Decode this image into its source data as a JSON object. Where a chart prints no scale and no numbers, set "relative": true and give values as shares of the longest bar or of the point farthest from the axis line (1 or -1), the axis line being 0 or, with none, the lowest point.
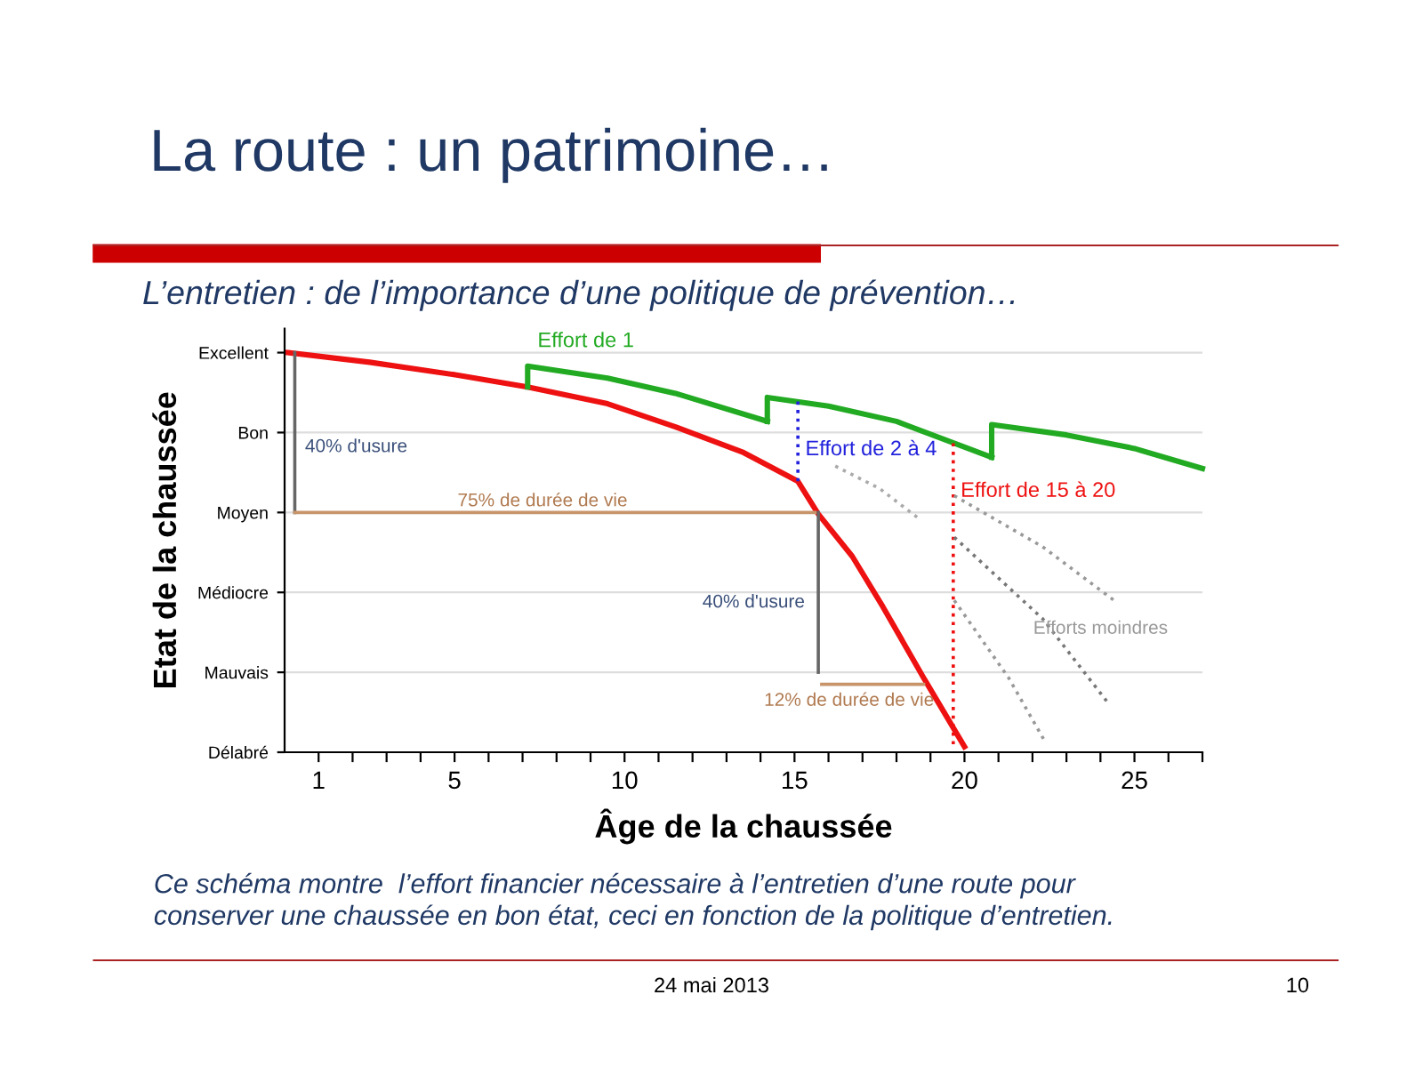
{
  "chart_data": {
    "type": "line",
    "title": "La route : un patrimoine…",
    "subtitle": "L’entretien : de l’importance d’une politique de prévention…",
    "xlabel": "Âge de la chaussée",
    "ylabel": "Etat de la chaussée",
    "relative": true,
    "xlim": [
      0,
      27
    ],
    "xticks": [
      1,
      {
        "value": 2,
        "label": null
      },
      {
        "value": 3,
        "label": null
      },
      {
        "value": 4,
        "label": null
      },
      5,
      {
        "value": 6,
        "label": null
      },
      {
        "value": 7,
        "label": null
      },
      {
        "value": 8,
        "label": null
      },
      {
        "value": 9,
        "label": null
      },
      10,
      {
        "value": 11,
        "label": null
      },
      {
        "value": 12,
        "label": null
      },
      {
        "value": 13,
        "label": null
      },
      {
        "value": 14,
        "label": null
      },
      15,
      {
        "value": 16,
        "label": null
      },
      {
        "value": 17,
        "label": null
      },
      {
        "value": 18,
        "label": null
      },
      {
        "value": 19,
        "label": null
      },
      20,
      {
        "value": 21,
        "label": null
      },
      {
        "value": 22,
        "label": null
      },
      {
        "value": 23,
        "label": null
      },
      {
        "value": 24,
        "label": null
      },
      25,
      {
        "value": 26,
        "label": null
      },
      {
        "value": 27,
        "label": null
      }
    ],
    "y_categories": [
      "Excellent",
      "Bon",
      "Moyen",
      "Médiocre",
      "Mauvais",
      "Délabré"
    ],
    "grid": "y",
    "legend": false,
    "series": [
      {
        "color": "#ee1111",
        "x": [
          0.1,
          2.5,
          5.06,
          7.15,
          9.5,
          11.5,
          13.5,
          15.1,
          15.7,
          16.7,
          17.6,
          18.8,
          20.0
        ],
        "values": [
          1.0,
          0.976,
          0.944,
          0.914,
          0.872,
          0.814,
          0.75,
          0.678,
          0.596,
          0.49,
          0.364,
          0.186,
          0.014
        ]
      },
      {
        "name": "Effort de 1",
        "color": "#22aa22",
        "x": [
          7.15,
          7.15,
          9.5,
          11.5,
          14.2
        ],
        "values": [
          0.914,
          0.966,
          0.936,
          0.898,
          0.828
        ]
      },
      {
        "color": "#22aa22",
        "x": [
          14.2,
          14.2,
          16.0,
          18.0,
          20.8
        ],
        "values": [
          0.828,
          0.888,
          0.866,
          0.828,
          0.738
        ]
      },
      {
        "color": "#22aa22",
        "x": [
          20.8,
          20.8,
          23.0,
          25.0,
          27.0
        ],
        "values": [
          0.738,
          0.82,
          0.794,
          0.76,
          0.71
        ]
      },
      {
        "name": "Effort de 2 à 4",
        "color": "#2222dd",
        "line_style": "dotted",
        "x": [
          15.1,
          15.1
        ],
        "values": [
          0.678,
          0.88
        ]
      },
      {
        "name": "Effort de 15 à 20",
        "color": "#ee1111",
        "line_style": "dotted",
        "x": [
          19.67,
          19.67
        ],
        "values": [
          0.02,
          0.776
        ]
      },
      {
        "color": "#aaaaaa",
        "line_style": "dotted",
        "x": [
          16.2,
          17.5,
          18.7
        ],
        "values": [
          0.716,
          0.66,
          0.582
        ]
      },
      {
        "color": "#999999",
        "line_style": "dotted",
        "x": [
          19.7,
          22.3,
          24.4
        ],
        "values": [
          0.642,
          0.514,
          0.38
        ]
      },
      {
        "color": "#777777",
        "line_style": "dotted",
        "x": [
          19.7,
          22.3,
          24.2
        ],
        "values": [
          0.538,
          0.334,
          0.126
        ]
      },
      {
        "color": "#999999",
        "line_style": "dotted",
        "x": [
          19.7,
          21.3,
          22.4
        ],
        "values": [
          0.38,
          0.186,
          0.022
        ]
      },
      {
        "color": "#666666",
        "x": [
          0.3,
          0.3
        ],
        "values": [
          1.0,
          0.6
        ]
      },
      {
        "color": "#c8956b",
        "x": [
          0.3,
          15.6
        ],
        "values": [
          0.6,
          0.6
        ]
      },
      {
        "color": "#666666",
        "x": [
          15.7,
          15.7
        ],
        "values": [
          0.6,
          0.2
        ]
      },
      {
        "color": "#c8956b",
        "x": [
          15.8,
          18.8
        ],
        "values": [
          0.17,
          0.17
        ]
      }
    ],
    "annotations": [
      "40% d'usure",
      "75% de durée de vie",
      "40% d'usure",
      "12% de durée de vie",
      "Efforts moindres",
      "Ce schéma montre  l’effort financier nécessaire à l’entretien d’une route pour\nconserver une chaussée en bon état, ceci en fonction de la politique d’entretien.",
      "24 mai 2013",
      "10"
    ]
  }
}
